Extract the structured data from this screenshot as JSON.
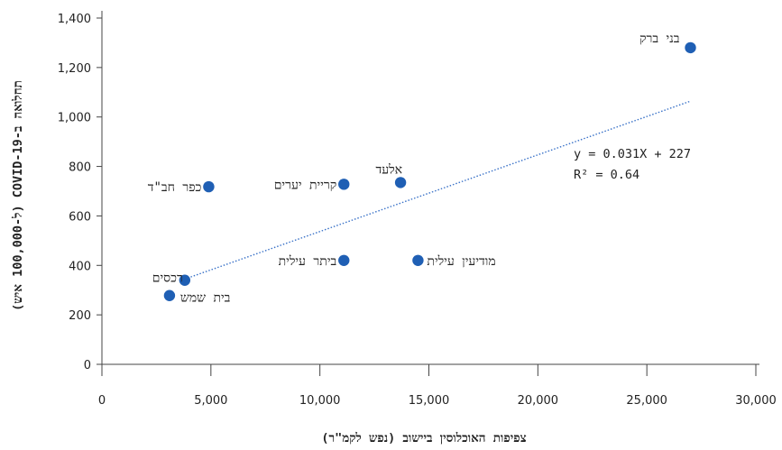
{
  "chart_data": {
    "type": "scatter",
    "title": "",
    "xlabel": "צפיפות האוכלוסין ביישוב (נפש לקמ\"ר)",
    "ylabel": "תחלואה ב-COVID-19 (ל-100,000 איש)",
    "xlim": [
      0,
      30000
    ],
    "ylim": [
      0,
      1400
    ],
    "x_ticks": [
      0,
      5000,
      10000,
      15000,
      20000,
      25000,
      30000
    ],
    "x_tick_labels": [
      "0",
      "5,000",
      "10,000",
      "15,000",
      "20,000",
      "25,000",
      "30,000"
    ],
    "y_ticks": [
      0,
      200,
      400,
      600,
      800,
      1000,
      1200,
      1400
    ],
    "y_tick_labels": [
      "0",
      "200",
      "400",
      "600",
      "800",
      "1,000",
      "1,200",
      "1,400"
    ],
    "grid": false,
    "marker_color": "#1f5fb4",
    "trendline_color": "#3a72c8",
    "points": [
      {
        "label": "בני ברק",
        "x": 27000,
        "y": 1280
      },
      {
        "label": "אלעד",
        "x": 13700,
        "y": 735
      },
      {
        "label": "קריית יערים",
        "x": 11100,
        "y": 728
      },
      {
        "label": "כפר חב\"ד",
        "x": 4900,
        "y": 718
      },
      {
        "label": "ביתר עילית",
        "x": 11100,
        "y": 420
      },
      {
        "label": "מודיעין עילית",
        "x": 14500,
        "y": 420
      },
      {
        "label": "רכסים",
        "x": 3800,
        "y": 340
      },
      {
        "label": "בית שמש",
        "x": 3100,
        "y": 278
      }
    ],
    "trendline": {
      "type": "linear",
      "slope": 0.031,
      "intercept": 227,
      "x_range": [
        3800,
        27000
      ],
      "equation": "y = 0.031X + 227",
      "r_squared": "R² = 0.64"
    }
  }
}
